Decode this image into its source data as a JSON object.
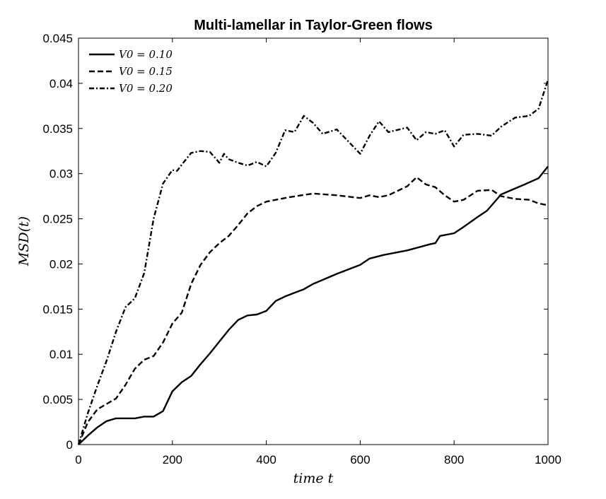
{
  "chart_data": {
    "type": "line",
    "title": "Multi-lamellar in Taylor-Green flows",
    "xlabel": "time t",
    "ylabel": "MSD(t)",
    "xlim": [
      0,
      1000
    ],
    "ylim": [
      0,
      0.045
    ],
    "xticks": [
      0,
      200,
      400,
      600,
      800,
      1000
    ],
    "xtick_labels": [
      "0",
      "200",
      "400",
      "600",
      "800",
      "1000"
    ],
    "yticks": [
      0,
      0.005,
      0.01,
      0.015,
      0.02,
      0.025,
      0.03,
      0.035,
      0.04,
      0.045
    ],
    "ytick_labels": [
      "0",
      "0.005",
      "0.01",
      "0.015",
      "0.02",
      "0.025",
      "0.03",
      "0.035",
      "0.04",
      "0.045"
    ],
    "grid": false,
    "legend_position": "top-left",
    "series": [
      {
        "name": "V0 = 0.10",
        "line_style": "solid",
        "color": "#000000",
        "x": [
          0,
          20,
          40,
          60,
          80,
          100,
          120,
          140,
          160,
          180,
          200,
          220,
          240,
          260,
          280,
          300,
          320,
          340,
          360,
          380,
          400,
          420,
          440,
          460,
          480,
          500,
          550,
          600,
          620,
          650,
          700,
          750,
          760,
          770,
          800,
          820,
          850,
          870,
          900,
          950,
          980,
          1000
        ],
        "y": [
          0,
          0.001,
          0.0019,
          0.0026,
          0.0029,
          0.0029,
          0.0029,
          0.0031,
          0.0031,
          0.0037,
          0.0059,
          0.0069,
          0.0076,
          0.0089,
          0.0101,
          0.0114,
          0.0127,
          0.0138,
          0.0143,
          0.0144,
          0.0148,
          0.0159,
          0.0164,
          0.0168,
          0.0172,
          0.0178,
          0.0189,
          0.0199,
          0.0206,
          0.021,
          0.0215,
          0.0222,
          0.0223,
          0.0231,
          0.0234,
          0.0241,
          0.0252,
          0.0259,
          0.0277,
          0.0288,
          0.0295,
          0.0308
        ]
      },
      {
        "name": "V0 = 0.15",
        "line_style": "dashed",
        "color": "#000000",
        "x": [
          0,
          20,
          40,
          60,
          80,
          100,
          120,
          140,
          160,
          180,
          200,
          220,
          240,
          260,
          280,
          300,
          320,
          340,
          360,
          380,
          400,
          450,
          500,
          550,
          600,
          620,
          640,
          660,
          700,
          720,
          740,
          760,
          780,
          800,
          820,
          850,
          880,
          900,
          930,
          960,
          980,
          1000
        ],
        "y": [
          0,
          0.0025,
          0.0039,
          0.0045,
          0.0051,
          0.0066,
          0.0084,
          0.0094,
          0.0098,
          0.0113,
          0.0134,
          0.0146,
          0.0178,
          0.0199,
          0.0213,
          0.0223,
          0.0231,
          0.0243,
          0.0256,
          0.0264,
          0.0269,
          0.0274,
          0.0278,
          0.0276,
          0.0273,
          0.0276,
          0.0274,
          0.0276,
          0.0286,
          0.0296,
          0.0288,
          0.0285,
          0.0276,
          0.0269,
          0.0271,
          0.0281,
          0.0282,
          0.0275,
          0.0272,
          0.0271,
          0.0267,
          0.0265
        ]
      },
      {
        "name": "V0 = 0.20",
        "line_style": "dash-dot",
        "color": "#000000",
        "x": [
          0,
          20,
          40,
          60,
          80,
          100,
          120,
          140,
          160,
          180,
          200,
          210,
          220,
          240,
          260,
          280,
          300,
          310,
          320,
          340,
          360,
          380,
          400,
          420,
          440,
          460,
          480,
          500,
          520,
          550,
          600,
          620,
          640,
          660,
          700,
          720,
          740,
          760,
          780,
          800,
          820,
          850,
          880,
          900,
          930,
          960,
          980,
          1000
        ],
        "y": [
          0,
          0.0035,
          0.0065,
          0.0093,
          0.0125,
          0.0152,
          0.0162,
          0.019,
          0.025,
          0.0289,
          0.0304,
          0.0303,
          0.031,
          0.0323,
          0.0325,
          0.0324,
          0.0312,
          0.0322,
          0.0316,
          0.0312,
          0.0309,
          0.0313,
          0.0308,
          0.0323,
          0.0348,
          0.0346,
          0.0364,
          0.0356,
          0.0344,
          0.0349,
          0.0322,
          0.0342,
          0.0358,
          0.0346,
          0.0351,
          0.0337,
          0.0346,
          0.0344,
          0.0348,
          0.033,
          0.0343,
          0.0344,
          0.0342,
          0.0352,
          0.0362,
          0.0364,
          0.0372,
          0.0404
        ]
      }
    ]
  }
}
